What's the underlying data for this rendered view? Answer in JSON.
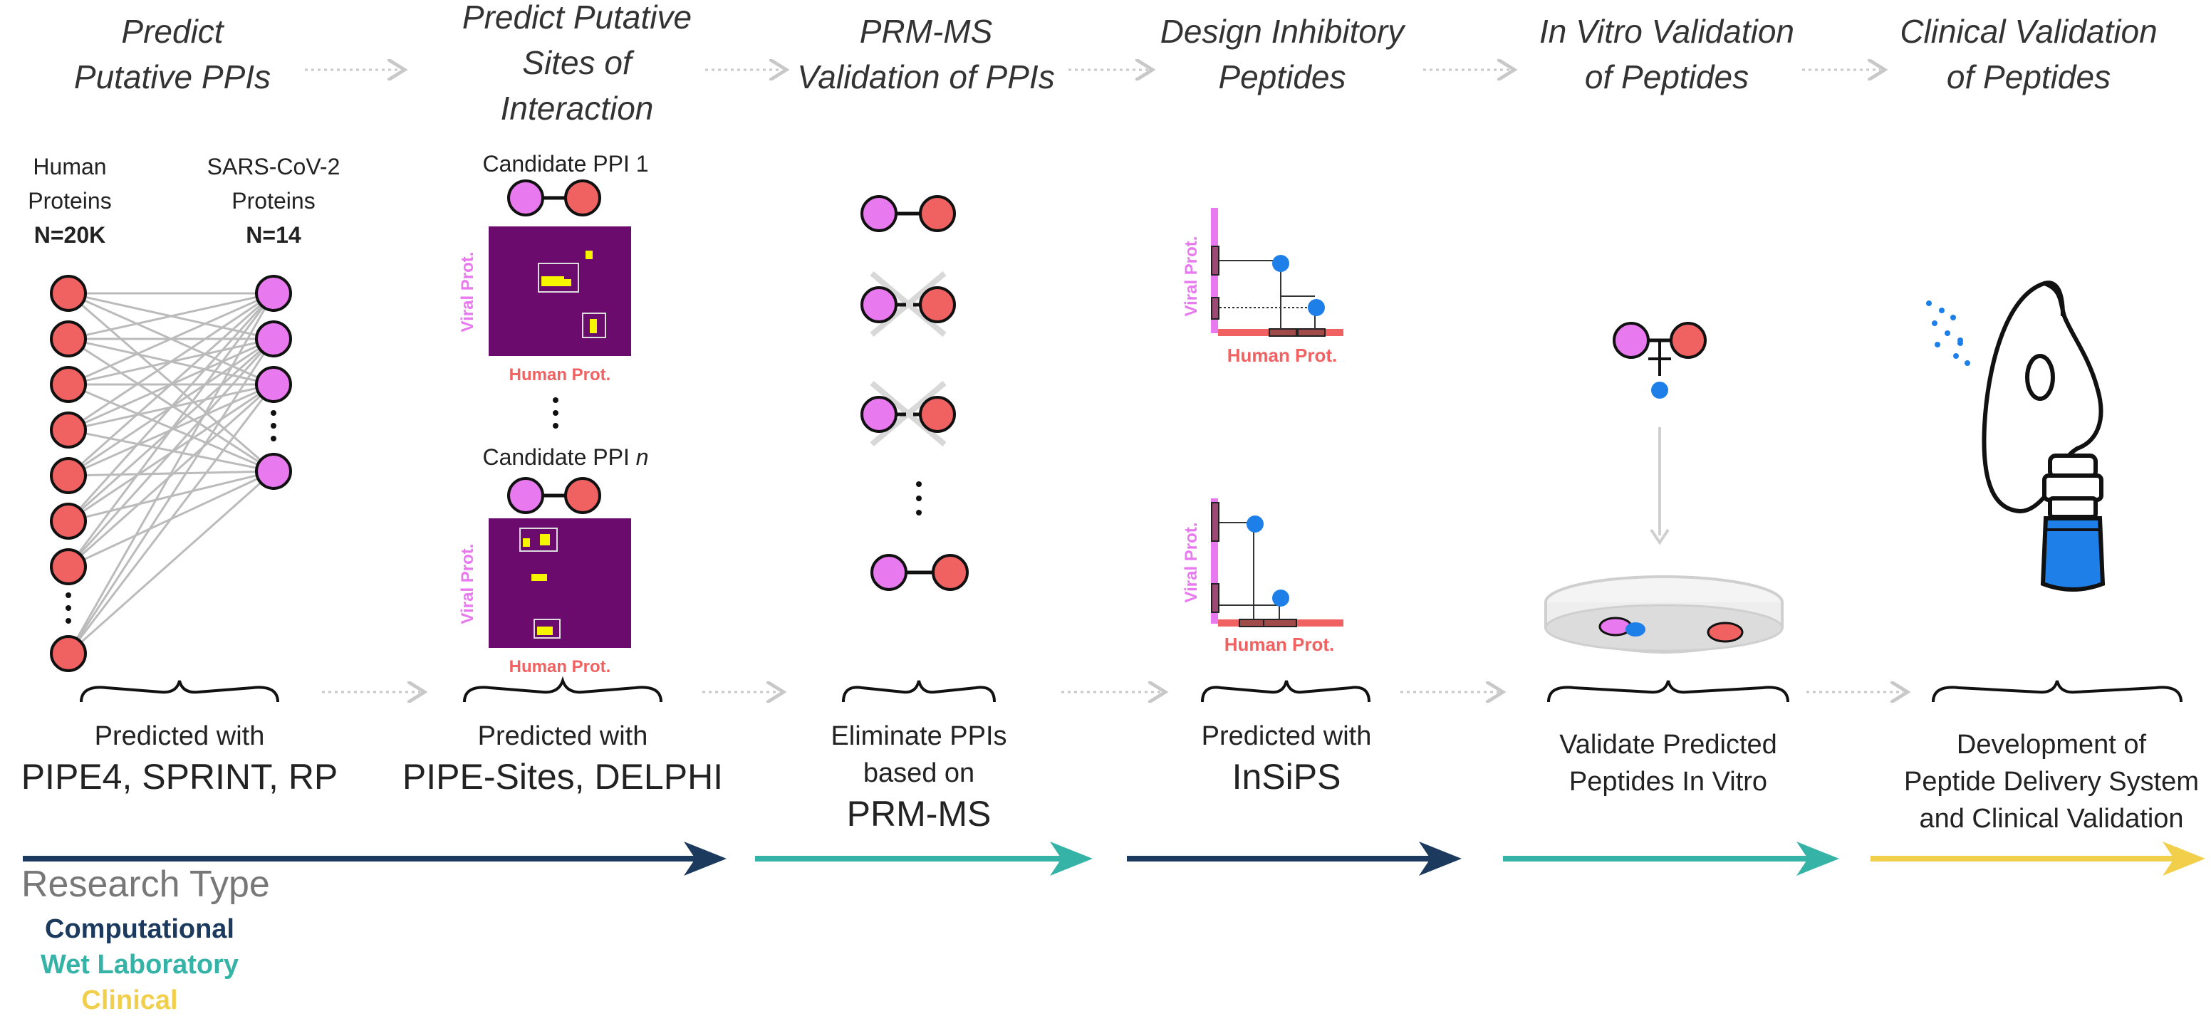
{
  "stages": [
    {
      "title": "Predict\nPutative PPIs",
      "caption_small": "Predicted with",
      "caption_big": "PIPE4, SPRINT, RP",
      "type": "Computational"
    },
    {
      "title": "Predict Putative\nSites of\nInteraction",
      "caption_small": "Predicted with",
      "caption_big": "PIPE-Sites, DELPHI",
      "type": "Computational"
    },
    {
      "title": "PRM-MS\nValidation of PPIs",
      "caption_small": "Eliminate PPIs\nbased on",
      "caption_big": "PRM-MS",
      "type": "Wet Laboratory"
    },
    {
      "title": "Design Inhibitory\nPeptides",
      "caption_small": "Predicted with",
      "caption_big": "InSiPS",
      "type": "Computational"
    },
    {
      "title": "In Vitro Validation\nof Peptides",
      "caption_small": "Validate Predicted\nPeptides In Vitro",
      "caption_big": "",
      "type": "Wet Laboratory"
    },
    {
      "title": "Clinical Validation\nof Peptides",
      "caption_small": "Development of\nPeptide Delivery System\nand Clinical Validation",
      "caption_big": "",
      "type": "Clinical"
    }
  ],
  "network": {
    "human_label": "Human\nProteins",
    "human_count": "N=20K",
    "viral_label": "SARS-CoV-2\nProteins",
    "viral_count": "N=14"
  },
  "sites": {
    "ppi_1": "Candidate PPI 1",
    "ppi_n_prefix": "Candidate PPI ",
    "ppi_n_suffix": "n",
    "y_axis": "Viral Prot.",
    "x_axis": "Human Prot."
  },
  "peptides": {
    "y_axis": "Viral Prot.",
    "x_axis": "Human Prot."
  },
  "legend": {
    "heading": "Research Type",
    "items": [
      {
        "label": "Computational",
        "color": "#1c3a5e"
      },
      {
        "label": "Wet Laboratory",
        "color": "#35b3a6"
      },
      {
        "label": "Clinical",
        "color": "#f2cf4a"
      }
    ]
  },
  "colors": {
    "human": "#f06262",
    "viral": "#e879ef",
    "peptide": "#1e7fe8",
    "matrix": "#6b0b6e",
    "hotspot": "#f5f500",
    "computational": "#1c3a5e",
    "wet_lab": "#35b3a6",
    "clinical": "#f2cf4a"
  }
}
